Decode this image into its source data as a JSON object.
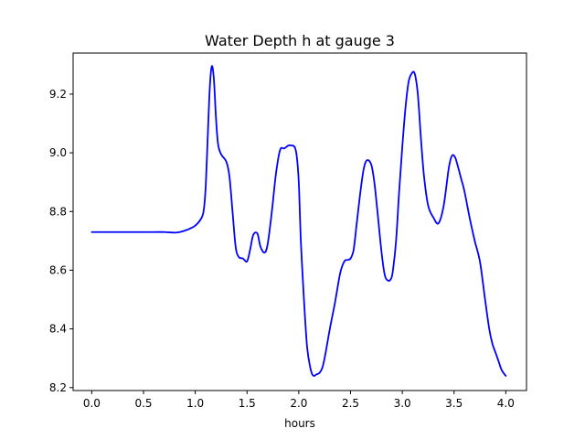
{
  "chart_data": {
    "type": "line",
    "title": "Water Depth h at gauge 3",
    "xlabel": "hours",
    "ylabel": "",
    "xlim": [
      -0.18,
      4.2
    ],
    "ylim": [
      8.19,
      9.34
    ],
    "x_ticks": [
      0.0,
      0.5,
      1.0,
      1.5,
      2.0,
      2.5,
      3.0,
      3.5,
      4.0
    ],
    "x_tick_labels": [
      "0.0",
      "0.5",
      "1.0",
      "1.5",
      "2.0",
      "2.5",
      "3.0",
      "3.5",
      "4.0"
    ],
    "y_ticks": [
      8.2,
      8.4,
      8.6,
      8.8,
      9.0,
      9.2
    ],
    "y_tick_labels": [
      "8.2",
      "8.4",
      "8.6",
      "8.8",
      "9.0",
      "9.2"
    ],
    "grid": false,
    "series": [
      {
        "color": "#0000ff",
        "x": [
          0.0,
          0.2,
          0.4,
          0.6,
          0.7,
          0.8,
          0.85,
          0.9,
          0.95,
          1.0,
          1.05,
          1.08,
          1.1,
          1.12,
          1.14,
          1.16,
          1.18,
          1.2,
          1.22,
          1.25,
          1.3,
          1.33,
          1.36,
          1.39,
          1.42,
          1.46,
          1.5,
          1.53,
          1.56,
          1.6,
          1.63,
          1.67,
          1.7,
          1.74,
          1.78,
          1.82,
          1.86,
          1.9,
          1.93,
          1.96,
          1.98,
          2.0,
          2.02,
          2.05,
          2.08,
          2.11,
          2.13,
          2.15,
          2.17,
          2.2,
          2.23,
          2.26,
          2.3,
          2.35,
          2.4,
          2.44,
          2.47,
          2.5,
          2.53,
          2.56,
          2.6,
          2.63,
          2.66,
          2.7,
          2.73,
          2.76,
          2.8,
          2.83,
          2.86,
          2.89,
          2.91,
          2.94,
          2.97,
          3.0,
          3.03,
          3.06,
          3.09,
          3.12,
          3.15,
          3.18,
          3.21,
          3.25,
          3.3,
          3.35,
          3.4,
          3.45,
          3.48,
          3.51,
          3.54,
          3.57,
          3.6,
          3.65,
          3.7,
          3.75,
          3.8,
          3.84,
          3.87,
          3.9,
          3.93,
          3.96,
          4.0
        ],
        "values": [
          8.73,
          8.73,
          8.73,
          8.73,
          8.73,
          8.728,
          8.73,
          8.735,
          8.742,
          8.752,
          8.772,
          8.8,
          8.88,
          9.05,
          9.22,
          9.295,
          9.25,
          9.12,
          9.03,
          8.995,
          8.97,
          8.92,
          8.8,
          8.68,
          8.645,
          8.64,
          8.63,
          8.67,
          8.72,
          8.725,
          8.68,
          8.66,
          8.69,
          8.8,
          8.93,
          9.01,
          9.015,
          9.025,
          9.025,
          9.02,
          8.99,
          8.9,
          8.7,
          8.5,
          8.34,
          8.27,
          8.245,
          8.24,
          8.245,
          8.25,
          8.27,
          8.32,
          8.4,
          8.49,
          8.59,
          8.63,
          8.635,
          8.64,
          8.67,
          8.76,
          8.88,
          8.95,
          8.975,
          8.96,
          8.9,
          8.8,
          8.66,
          8.585,
          8.565,
          8.57,
          8.6,
          8.7,
          8.87,
          9.02,
          9.15,
          9.24,
          9.27,
          9.27,
          9.2,
          9.05,
          8.92,
          8.82,
          8.78,
          8.76,
          8.82,
          8.95,
          8.99,
          8.985,
          8.95,
          8.91,
          8.87,
          8.78,
          8.7,
          8.63,
          8.5,
          8.4,
          8.35,
          8.32,
          8.29,
          8.26,
          8.24
        ]
      }
    ]
  }
}
